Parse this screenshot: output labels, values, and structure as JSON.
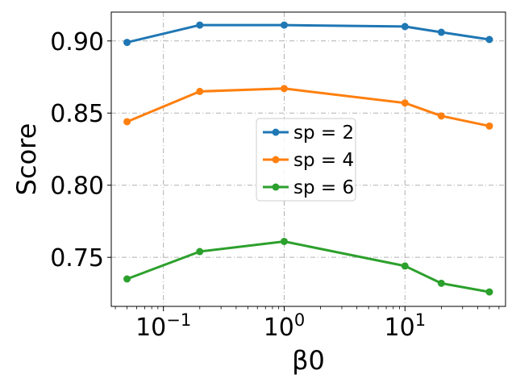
{
  "chart_data": {
    "type": "line",
    "title": "",
    "xlabel": "β0",
    "ylabel": "Score",
    "xscale": "log",
    "x": [
      0.05,
      0.2,
      1,
      10,
      20,
      50
    ],
    "xlim": [
      0.037,
      68
    ],
    "ylim": [
      0.716,
      0.92
    ],
    "xticks": [
      {
        "value": 0.1,
        "base": "10",
        "exp": "−1"
      },
      {
        "value": 1,
        "base": "10",
        "exp": "0"
      },
      {
        "value": 10,
        "base": "10",
        "exp": "1"
      }
    ],
    "yticks": [
      {
        "value": 0.75,
        "label": "0.75"
      },
      {
        "value": 0.8,
        "label": "0.80"
      },
      {
        "value": 0.85,
        "label": "0.85"
      },
      {
        "value": 0.9,
        "label": "0.90"
      }
    ],
    "grid": true,
    "legend_position": "center-right",
    "series": [
      {
        "name": "sp = 2",
        "color": "#1f77b4",
        "values": [
          0.899,
          0.911,
          0.911,
          0.91,
          0.906,
          0.901
        ]
      },
      {
        "name": "sp = 4",
        "color": "#ff7f0e",
        "values": [
          0.844,
          0.865,
          0.867,
          0.857,
          0.848,
          0.841
        ]
      },
      {
        "name": "sp = 6",
        "color": "#2ca02c",
        "values": [
          0.735,
          0.754,
          0.761,
          0.744,
          0.732,
          0.726
        ]
      }
    ]
  }
}
